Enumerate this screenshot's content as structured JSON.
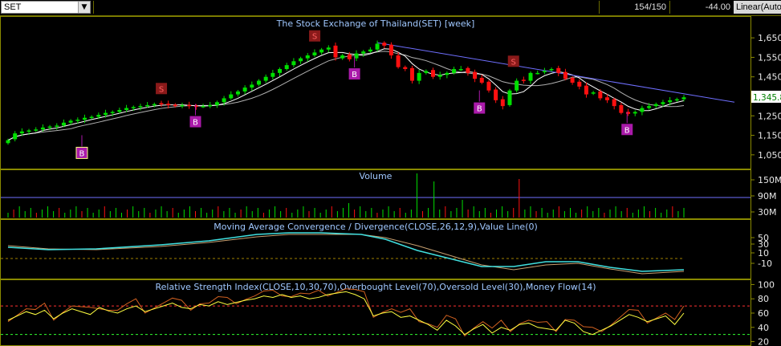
{
  "toolbar": {
    "symbol": "SET",
    "counter": "154/150",
    "change": "-44.00",
    "scale_mode": "Linear(Auto"
  },
  "colors": {
    "up": "#00e000",
    "down": "#ff1010",
    "ma_fast": "#ffffff",
    "ma_slow": "#b0b0b0",
    "trendline": "#6f6fff",
    "buy_marker": "#aa1aaa",
    "sell_marker": "#8a1a1a",
    "macd": "#40e0e0",
    "signal": "#c8a070",
    "rsi": "#ffff40",
    "money_flow": "#d06020",
    "overbought": "#ff3030",
    "oversold": "#30ff30"
  },
  "chart_data": [
    {
      "type": "candlestick",
      "title": "The Stock Exchange of Thailand(SET) [week]",
      "yticks": [
        "1,650",
        "1,550",
        "1,450",
        "1,350",
        "1,250",
        "1,150",
        "1,050"
      ],
      "ylim": [
        1000,
        1700
      ],
      "last_label": "1,345.8",
      "close": [
        1125,
        1160,
        1170,
        1175,
        1180,
        1190,
        1195,
        1200,
        1215,
        1225,
        1230,
        1240,
        1245,
        1255,
        1265,
        1270,
        1280,
        1290,
        1295,
        1300,
        1305,
        1310,
        1310,
        1305,
        1300,
        1305,
        1300,
        1298,
        1300,
        1305,
        1320,
        1340,
        1360,
        1375,
        1395,
        1410,
        1430,
        1450,
        1470,
        1490,
        1510,
        1530,
        1545,
        1560,
        1575,
        1590,
        1600,
        1550,
        1560,
        1540,
        1570,
        1580,
        1590,
        1620,
        1610,
        1560,
        1500,
        1490,
        1430,
        1470,
        1480,
        1450,
        1460,
        1470,
        1490,
        1490,
        1470,
        1440,
        1420,
        1380,
        1330,
        1300,
        1380,
        1430,
        1430,
        1470,
        1470,
        1480,
        1490,
        1470,
        1440,
        1420,
        1400,
        1360,
        1370,
        1340,
        1330,
        1300,
        1265,
        1260,
        1270,
        1290,
        1300,
        1310,
        1320,
        1330,
        1335,
        1345
      ],
      "open": [
        1110,
        1130,
        1160,
        1170,
        1175,
        1180,
        1190,
        1195,
        1200,
        1215,
        1225,
        1230,
        1240,
        1245,
        1255,
        1265,
        1270,
        1280,
        1290,
        1295,
        1300,
        1305,
        1315,
        1312,
        1307,
        1300,
        1306,
        1302,
        1298,
        1300,
        1305,
        1320,
        1340,
        1360,
        1375,
        1395,
        1410,
        1430,
        1450,
        1470,
        1490,
        1510,
        1530,
        1545,
        1560,
        1575,
        1590,
        1610,
        1545,
        1565,
        1545,
        1570,
        1580,
        1590,
        1625,
        1615,
        1560,
        1500,
        1495,
        1430,
        1470,
        1485,
        1450,
        1460,
        1470,
        1490,
        1495,
        1475,
        1445,
        1425,
        1385,
        1335,
        1305,
        1380,
        1435,
        1430,
        1470,
        1475,
        1490,
        1495,
        1475,
        1445,
        1425,
        1405,
        1365,
        1375,
        1345,
        1335,
        1305,
        1270,
        1262,
        1270,
        1290,
        1300,
        1310,
        1320,
        1330,
        1335
      ],
      "sell_signals": [
        {
          "index": 27,
          "price": 1390
        },
        {
          "index": 54,
          "price": 1660
        },
        {
          "index": 89,
          "price": 1530
        }
      ],
      "buy_signals": [
        {
          "index": 13,
          "price": 1060
        },
        {
          "index": 33,
          "price": 1220
        },
        {
          "index": 61,
          "price": 1465
        },
        {
          "index": 83,
          "price": 1290
        },
        {
          "index": 109,
          "price": 1180
        }
      ]
    },
    {
      "type": "bar",
      "title": "Volume",
      "yticks": [
        "150M",
        "90M",
        "30M"
      ],
      "ylim": [
        0,
        180
      ]
    },
    {
      "type": "line",
      "title": "Moving Average Convergence / Divergence(CLOSE,26,12,9),Value Line(0)",
      "yticks": [
        "50",
        "30",
        "10",
        "-10"
      ],
      "ylim": [
        -20,
        60
      ]
    },
    {
      "type": "line",
      "title": "Relative Strength Index(CLOSE,10,30,70),Overbought Level(70),Oversold Level(30),Money Flow(14)",
      "yticks": [
        "100",
        "80",
        "60",
        "40",
        "20"
      ],
      "ylim": [
        15,
        105
      ],
      "overbought": 70,
      "oversold": 30
    }
  ]
}
